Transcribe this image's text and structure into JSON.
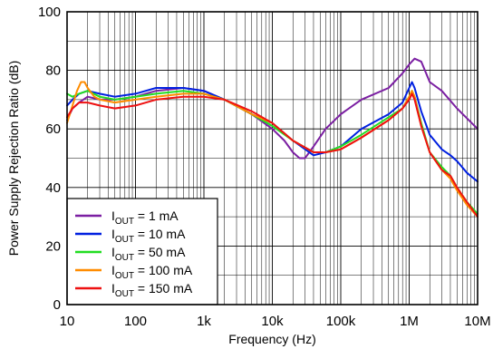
{
  "chart_data": {
    "type": "line",
    "title": "",
    "xlabel": "Frequency (Hz)",
    "ylabel": "Power Supply Rejection Ratio (dB)",
    "xscale": "log",
    "xlim": [
      10,
      10000000
    ],
    "ylim": [
      0,
      100
    ],
    "grid": true,
    "legend_placement": "bottom-left",
    "x_ticks": [
      {
        "value": 10,
        "label": "10"
      },
      {
        "value": 100,
        "label": "100"
      },
      {
        "value": 1000,
        "label": "1k"
      },
      {
        "value": 10000,
        "label": "10k"
      },
      {
        "value": 100000,
        "label": "100k"
      },
      {
        "value": 1000000,
        "label": "1M"
      },
      {
        "value": 10000000,
        "label": "10M"
      }
    ],
    "y_ticks": [
      {
        "value": 0,
        "label": "0"
      },
      {
        "value": 20,
        "label": "20"
      },
      {
        "value": 40,
        "label": "40"
      },
      {
        "value": 60,
        "label": "60"
      },
      {
        "value": 80,
        "label": "80"
      },
      {
        "value": 100,
        "label": "100"
      }
    ],
    "series": [
      {
        "name": "I_OUT = 1 mA",
        "label_main": "I",
        "label_sub": "OUT",
        "label_rest": " = 1 mA",
        "color": "#7b1fa2",
        "x": [
          10,
          12,
          15,
          20,
          30,
          50,
          100,
          200,
          500,
          1000,
          2000,
          5000,
          10000,
          15000,
          20000,
          25000,
          30000,
          40000,
          60000,
          100000,
          200000,
          500000,
          800000,
          1000000,
          1200000,
          1500000,
          2000000,
          3000000,
          5000000,
          10000000
        ],
        "y": [
          63,
          67,
          69,
          71,
          70,
          70,
          71,
          73,
          74,
          73,
          70,
          65,
          60,
          56,
          52,
          50,
          50,
          54,
          60,
          65,
          70,
          74,
          79,
          82,
          84,
          83,
          76,
          73,
          67,
          60
        ]
      },
      {
        "name": "I_OUT = 10 mA",
        "label_main": "I",
        "label_sub": "OUT",
        "label_rest": " = 10 mA",
        "color": "#0020e0",
        "x": [
          10,
          12,
          15,
          20,
          30,
          50,
          100,
          200,
          500,
          1000,
          2000,
          5000,
          10000,
          20000,
          40000,
          60000,
          100000,
          200000,
          500000,
          800000,
          1000000,
          1100000,
          1200000,
          1500000,
          2000000,
          3000000,
          4000000,
          5000000,
          7000000,
          10000000
        ],
        "y": [
          68,
          70,
          72,
          73,
          72,
          71,
          72,
          74,
          74,
          73,
          70,
          65,
          62,
          56,
          51,
          52,
          54,
          60,
          65,
          69,
          74,
          76,
          74,
          66,
          58,
          53,
          51,
          49,
          45,
          42
        ]
      },
      {
        "name": "I_OUT = 50 mA",
        "label_main": "I",
        "label_sub": "OUT",
        "label_rest": " = 50 mA",
        "color": "#22dd22",
        "x": [
          10,
          12,
          15,
          20,
          30,
          50,
          100,
          200,
          500,
          1000,
          2000,
          5000,
          10000,
          20000,
          40000,
          60000,
          100000,
          200000,
          500000,
          800000,
          1000000,
          1100000,
          1200000,
          1500000,
          2000000,
          3000000,
          4000000,
          5000000,
          7000000,
          10000000
        ],
        "y": [
          72,
          71,
          72,
          73,
          71,
          70,
          71,
          72,
          73,
          72,
          70,
          65,
          61,
          56,
          52,
          52,
          54,
          58,
          64,
          67,
          71,
          73,
          71,
          62,
          52,
          47,
          44,
          40,
          35,
          31
        ]
      },
      {
        "name": "I_OUT = 100 mA",
        "label_main": "I",
        "label_sub": "OUT",
        "label_rest": " = 100 mA",
        "color": "#ff8c00",
        "x": [
          10,
          12,
          14,
          16,
          18,
          20,
          25,
          30,
          50,
          100,
          200,
          500,
          1000,
          2000,
          5000,
          10000,
          20000,
          40000,
          60000,
          100000,
          200000,
          500000,
          800000,
          1000000,
          1100000,
          1200000,
          1500000,
          2000000,
          3000000,
          4000000,
          5000000,
          7000000,
          10000000
        ],
        "y": [
          62,
          68,
          73,
          76,
          76,
          74,
          71,
          70,
          69,
          70,
          71,
          72,
          72,
          70,
          65,
          62,
          56,
          52,
          52,
          53,
          57,
          63,
          67,
          71,
          73,
          71,
          61,
          52,
          46,
          43,
          39,
          34,
          30
        ]
      },
      {
        "name": "I_OUT = 150 mA",
        "label_main": "I",
        "label_sub": "OUT",
        "label_rest": " = 150 mA",
        "color": "#ee1111",
        "x": [
          10,
          12,
          15,
          20,
          30,
          50,
          100,
          200,
          500,
          1000,
          2000,
          5000,
          10000,
          20000,
          40000,
          60000,
          100000,
          200000,
          500000,
          800000,
          1000000,
          1100000,
          1200000,
          1500000,
          2000000,
          3000000,
          4000000,
          5000000,
          7000000,
          10000000
        ],
        "y": [
          64,
          67,
          69,
          69,
          68,
          67,
          68,
          70,
          71,
          71,
          70,
          66,
          62,
          56,
          52,
          52,
          53,
          57,
          63,
          67,
          70,
          72,
          70,
          61,
          52,
          46,
          44,
          40,
          35,
          30
        ]
      }
    ]
  }
}
